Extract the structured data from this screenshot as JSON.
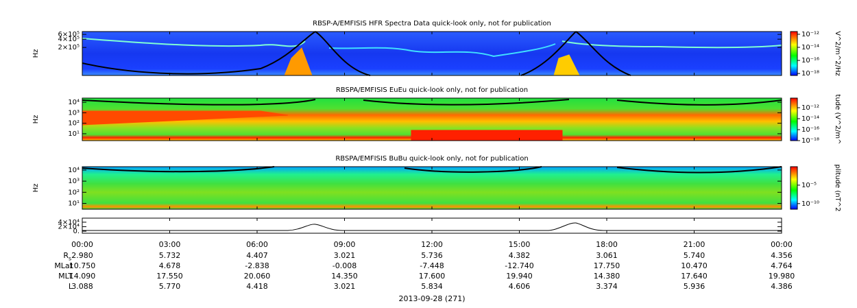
{
  "chart_data": [
    {
      "type": "spectrogram",
      "title": "RBSP-A/EMFISIS  HFR Spectra Data quick-look only, not for publication",
      "ylabel": "Hz",
      "log_y": true,
      "ylim": [
        19000,
        760000
      ],
      "yticks": [
        {
          "value": 200000,
          "label": "2×10⁵"
        },
        {
          "value": 400000,
          "label": "4×10⁵"
        },
        {
          "value": 600000,
          "label": "6×10⁵"
        }
      ],
      "zlabel": "V^2/m^2/Hz",
      "zlim": [
        5e-19,
        2.6e-12
      ],
      "zticks": [
        {
          "value": 1e-12,
          "label": "10⁻¹²"
        },
        {
          "value": 1e-14,
          "label": "10⁻¹⁴"
        },
        {
          "value": 1e-16,
          "label": "10⁻¹⁶"
        },
        {
          "value": 1e-18,
          "label": "10⁻¹⁸"
        }
      ]
    },
    {
      "type": "spectrogram",
      "title": "RBSPA/EMFISIS  EuEu quick-look only, not for publication",
      "ylabel": "Hz",
      "log_y": true,
      "ylim": [
        2.2,
        25000
      ],
      "yticks": [
        {
          "value": 10,
          "label": "10¹"
        },
        {
          "value": 100,
          "label": "10²"
        },
        {
          "value": 1000,
          "label": "10³"
        },
        {
          "value": 10000,
          "label": "10⁴"
        }
      ],
      "zlabel": "tude (V^2/m^",
      "zlim": [
        1e-18,
        5.6e-11
      ],
      "zticks": [
        {
          "value": 1e-12,
          "label": "10⁻¹²"
        },
        {
          "value": 1e-14,
          "label": "10⁻¹⁴"
        },
        {
          "value": 1e-16,
          "label": "10⁻¹⁶"
        },
        {
          "value": 1e-18,
          "label": "10⁻¹⁸"
        }
      ]
    },
    {
      "type": "spectrogram",
      "title": "RBSPA/EMFISIS  BuBu quick-look only, not for publication",
      "ylabel": "Hz",
      "log_y": true,
      "ylim": [
        3,
        20000
      ],
      "yticks": [
        {
          "value": 10,
          "label": "10¹"
        },
        {
          "value": 100,
          "label": "10²"
        },
        {
          "value": 1000,
          "label": "10³"
        },
        {
          "value": 10000,
          "label": "10⁴"
        }
      ],
      "zlabel": "plitude (nT^2",
      "zlim": [
        3e-12,
        1
      ],
      "zticks": [
        {
          "value": 1e-05,
          "label": "10⁻⁵"
        },
        {
          "value": 1e-10,
          "label": "10⁻¹⁰"
        }
      ]
    },
    {
      "type": "line",
      "ylim": [
        -9000,
        58000
      ],
      "yticks": [
        {
          "value": 0,
          "label": "0."
        },
        {
          "value": 20000,
          "label": "2×10⁴"
        },
        {
          "value": 40000,
          "label": "4×10⁴"
        }
      ]
    }
  ],
  "time_axis": {
    "ticks": [
      "00:00",
      "03:00",
      "06:00",
      "09:00",
      "12:00",
      "15:00",
      "18:00",
      "21:00",
      "00:00"
    ],
    "label": "2013-09-28 (271)"
  },
  "ephemeris": [
    {
      "label": "R",
      "subscript": "s",
      "values": [
        "2.980",
        "5.732",
        "4.407",
        "3.021",
        "5.736",
        "4.382",
        "3.061",
        "5.740",
        "4.356"
      ]
    },
    {
      "label": "MLat",
      "values": [
        "10.750",
        "4.678",
        "-2.838",
        "-0.008",
        "-7.448",
        "-12.740",
        "17.750",
        "10.470",
        "4.764"
      ]
    },
    {
      "label": "MLT",
      "values": [
        "14.090",
        "17.550",
        "20.060",
        "14.350",
        "17.600",
        "19.940",
        "14.380",
        "17.640",
        "19.980"
      ]
    },
    {
      "label": "L",
      "values": [
        "3.088",
        "5.770",
        "4.418",
        "3.021",
        "5.834",
        "4.606",
        "3.374",
        "5.936",
        "4.386"
      ]
    }
  ]
}
